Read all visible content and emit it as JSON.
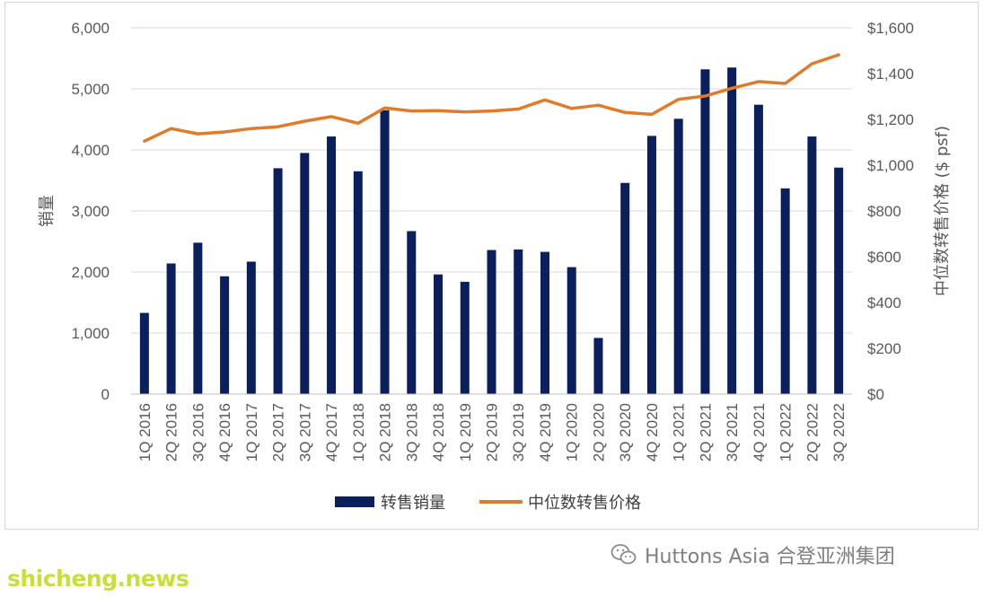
{
  "chart_data": {
    "type": "bar+line",
    "categories": [
      "1Q 2016",
      "2Q 2016",
      "3Q 2016",
      "4Q 2016",
      "1Q 2017",
      "2Q 2017",
      "3Q 2017",
      "4Q 2017",
      "1Q 2018",
      "2Q 2018",
      "3Q 2018",
      "4Q 2018",
      "1Q 2019",
      "2Q 2019",
      "3Q 2019",
      "4Q 2019",
      "1Q 2020",
      "2Q 2020",
      "3Q 2020",
      "4Q 2020",
      "1Q 2021",
      "2Q 2021",
      "3Q 2021",
      "4Q 2021",
      "1Q 2022",
      "2Q 2022",
      "3Q 2022"
    ],
    "series": [
      {
        "name": "转售销量",
        "type": "bar",
        "axis": "left",
        "color": "#0a1f5c",
        "values": [
          1330,
          2140,
          2480,
          1930,
          2170,
          3700,
          3950,
          4220,
          3650,
          4650,
          2670,
          1960,
          1840,
          2360,
          2370,
          2330,
          2080,
          920,
          3460,
          4230,
          4510,
          5320,
          5350,
          4740,
          3370,
          4220,
          3710
        ]
      },
      {
        "name": "中位数转售价格",
        "type": "line",
        "axis": "right",
        "color": "#e07b2c",
        "values": [
          1105,
          1160,
          1137,
          1145,
          1160,
          1168,
          1192,
          1212,
          1183,
          1250,
          1237,
          1238,
          1233,
          1237,
          1245,
          1285,
          1248,
          1262,
          1230,
          1222,
          1288,
          1302,
          1336,
          1365,
          1357,
          1443,
          1482
        ]
      }
    ],
    "y_left": {
      "label": "销量",
      "min": 0,
      "max": 6000,
      "ticks": [
        "0",
        "1,000",
        "2,000",
        "3,000",
        "4,000",
        "5,000",
        "6,000"
      ]
    },
    "y_right": {
      "label": "中位数转售价格 ($ psf)",
      "min": 0,
      "max": 1600,
      "ticks": [
        "$0",
        "$200",
        "$400",
        "$600",
        "$800",
        "$1,000",
        "$1,200",
        "$1,400",
        "$1,600"
      ]
    },
    "grid": true,
    "legend_position": "bottom"
  },
  "watermarks": {
    "source": "Huttons Asia 合登亚洲集团",
    "site": "shicheng.news"
  }
}
